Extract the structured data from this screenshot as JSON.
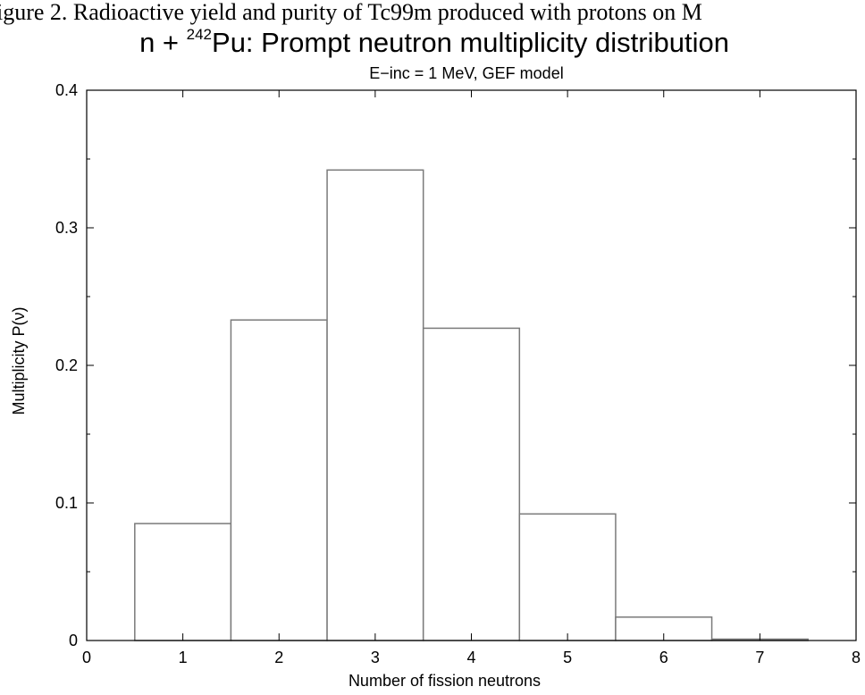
{
  "header_caption": "igure 2. Radioactive yield and purity of Tc99m produced with protons on M",
  "chart_data": {
    "type": "bar",
    "title_prefix": "n + ",
    "title_superscript": "242",
    "title_rest": "Pu: Prompt neutron multiplicity distribution",
    "subtitle": "E−inc = 1 MeV, GEF model",
    "xlabel": "Number of fission neutrons",
    "ylabel": "Multiplicity P(ν)",
    "xlim": [
      0,
      8
    ],
    "ylim": [
      0,
      0.4
    ],
    "x_ticks": [
      "0",
      "1",
      "2",
      "3",
      "4",
      "5",
      "6",
      "7",
      "8"
    ],
    "y_ticks": [
      "0",
      "0.1",
      "0.2",
      "0.3",
      "0.4"
    ],
    "categories": [
      1,
      2,
      3,
      4,
      5,
      6,
      7
    ],
    "values": [
      0.085,
      0.233,
      0.342,
      0.227,
      0.092,
      0.017,
      0.001
    ],
    "bar_width": 1,
    "grid": false,
    "legend": "none"
  }
}
